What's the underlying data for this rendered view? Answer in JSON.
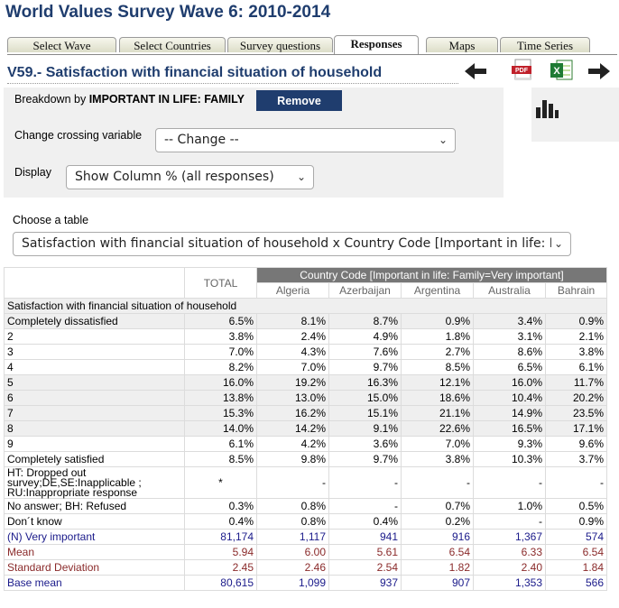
{
  "page": {
    "title": "World Values Survey Wave 6: 2010-2014"
  },
  "tabs": [
    {
      "label": "Select Wave"
    },
    {
      "label": "Select Countries"
    },
    {
      "label": "Survey questions"
    },
    {
      "label": "Responses",
      "active": true
    },
    {
      "label": "Maps"
    },
    {
      "label": "Time Series"
    }
  ],
  "variable": {
    "title": "V59.- Satisfaction with financial situation of household"
  },
  "controls": {
    "breakdown_prefix": "Breakdown by",
    "breakdown_value": "IMPORTANT IN LIFE: FAMILY",
    "remove_label": "Remove",
    "crossing_label": "Change crossing variable",
    "crossing_value": "-- Change --",
    "display_label": "Display",
    "display_value": "Show Column % (all responses)",
    "choose_table_label": "Choose a table",
    "table_value": "Satisfaction with financial situation of household x Country Code [Important in life: Fa"
  },
  "icons": {
    "back": "arrow-left-icon",
    "pdf": "pdf-icon",
    "excel": "excel-icon",
    "forward": "arrow-right-icon",
    "chart": "bar-chart-icon"
  },
  "table": {
    "group_header": "Country Code [Important in life: Family=Very important]",
    "total_header": "TOTAL",
    "columns": [
      "Algeria",
      "Azerbaijan",
      "Argentina",
      "Australia",
      "Bahrain"
    ],
    "section_label": "Satisfaction with financial situation of household",
    "rows": [
      {
        "label": "Completely dissatisfied",
        "values": [
          "6.5%",
          "8.1%",
          "8.7%",
          "0.9%",
          "3.4%",
          "0.9%"
        ],
        "style": "shade"
      },
      {
        "label": "2",
        "values": [
          "3.8%",
          "2.4%",
          "4.9%",
          "1.8%",
          "3.1%",
          "2.1%"
        ],
        "style": ""
      },
      {
        "label": "3",
        "values": [
          "7.0%",
          "4.3%",
          "7.6%",
          "2.7%",
          "8.6%",
          "3.8%"
        ],
        "style": ""
      },
      {
        "label": "4",
        "values": [
          "8.2%",
          "7.0%",
          "9.7%",
          "8.5%",
          "6.5%",
          "6.1%"
        ],
        "style": ""
      },
      {
        "label": "5",
        "values": [
          "16.0%",
          "19.2%",
          "16.3%",
          "12.1%",
          "16.0%",
          "11.7%"
        ],
        "style": "shade"
      },
      {
        "label": "6",
        "values": [
          "13.8%",
          "13.0%",
          "15.0%",
          "18.6%",
          "10.4%",
          "20.2%"
        ],
        "style": "shade"
      },
      {
        "label": "7",
        "values": [
          "15.3%",
          "16.2%",
          "15.1%",
          "21.1%",
          "14.9%",
          "23.5%"
        ],
        "style": "shade"
      },
      {
        "label": "8",
        "values": [
          "14.0%",
          "14.2%",
          "9.1%",
          "22.6%",
          "16.5%",
          "17.1%"
        ],
        "style": "shade"
      },
      {
        "label": "9",
        "values": [
          "6.1%",
          "4.2%",
          "3.6%",
          "7.0%",
          "9.3%",
          "9.6%"
        ],
        "style": ""
      },
      {
        "label": "Completely satisfied",
        "values": [
          "8.5%",
          "9.8%",
          "9.7%",
          "3.8%",
          "10.3%",
          "3.7%"
        ],
        "style": ""
      },
      {
        "label": "HT: Dropped out survey;DE,SE:Inapplicable ; RU:Inappropriate response",
        "values": [
          "*",
          "-",
          "-",
          "-",
          "-",
          "-"
        ],
        "style": "tall"
      },
      {
        "label": "No answer; BH: Refused",
        "values": [
          "0.3%",
          "0.8%",
          "-",
          "0.7%",
          "1.0%",
          "0.5%"
        ],
        "style": ""
      },
      {
        "label": "Don´t know",
        "values": [
          "0.4%",
          "0.8%",
          "0.4%",
          "0.2%",
          "-",
          "0.9%"
        ],
        "style": ""
      },
      {
        "label": "(N) Very important",
        "values": [
          "81,174",
          "1,117",
          "941",
          "916",
          "1,367",
          "574"
        ],
        "style": "blue"
      },
      {
        "label": "Mean",
        "values": [
          "5.94",
          "6.00",
          "5.61",
          "6.54",
          "6.33",
          "6.54"
        ],
        "style": "red"
      },
      {
        "label": "Standard Deviation",
        "values": [
          "2.45",
          "2.46",
          "2.54",
          "1.82",
          "2.40",
          "1.84"
        ],
        "style": "red"
      },
      {
        "label": "Base mean",
        "values": [
          "80,615",
          "1,099",
          "937",
          "907",
          "1,353",
          "566"
        ],
        "style": "blue"
      }
    ]
  }
}
